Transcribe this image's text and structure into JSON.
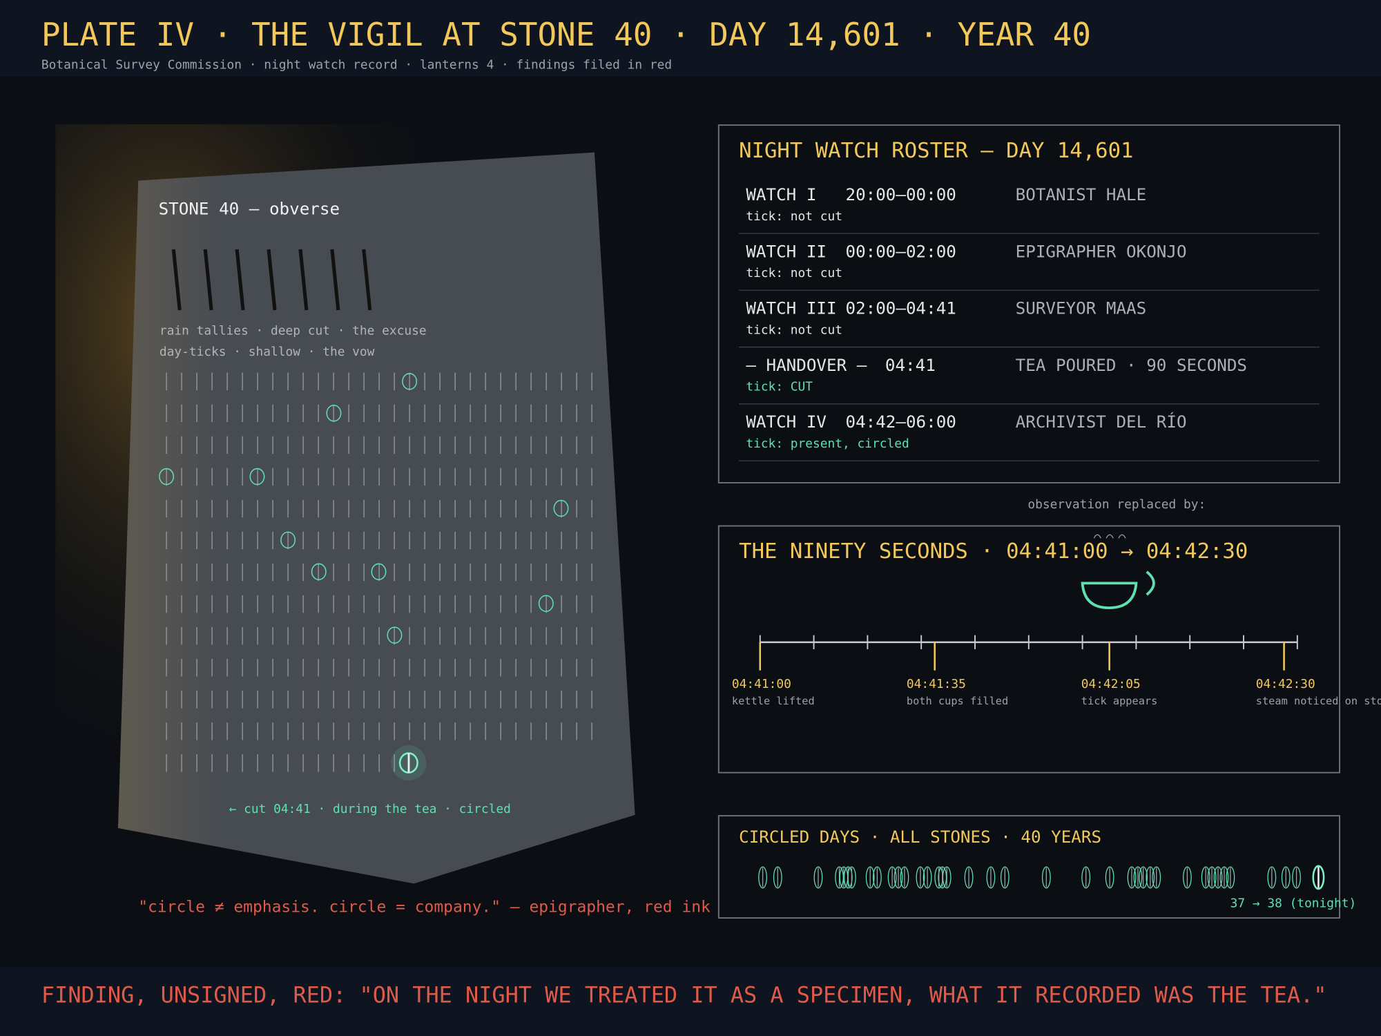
{
  "header": {
    "title": "PLATE IV · THE VIGIL AT STONE 40 · DAY 14,601 · YEAR 40",
    "subtitle": "Botanical Survey Commission · night watch record · lanterns 4 · findings filed in red"
  },
  "stone": {
    "label": "STONE 40 — obverse",
    "legend": [
      "rain tallies · deep cut · the excuse",
      "day-ticks · shallow · the vow"
    ],
    "caption": "← cut 04:41 · during the tea · circled",
    "quote": "\"circle ≠ emphasis. circle = company.\" — epigrapher, red ink"
  },
  "roster": {
    "title": "NIGHT WATCH ROSTER — DAY 14,601",
    "rows": [
      {
        "watch": "WATCH I",
        "time": "20:00–00:00",
        "name": "BOTANIST HALE",
        "status": "tick: not cut"
      },
      {
        "watch": "WATCH II",
        "time": "00:00–02:00",
        "name": "EPIGRAPHER OKONJO",
        "status": "tick: not cut"
      },
      {
        "watch": "WATCH III",
        "time": "02:00–04:41",
        "name": "SURVEYOR MAAS",
        "status": "tick: not cut"
      },
      {
        "watch": "— HANDOVER —",
        "time": "04:41",
        "name": "TEA POURED · 90 SECONDS",
        "status": "tick: CUT"
      },
      {
        "watch": "WATCH IV",
        "time": "04:42–06:00",
        "name": "ARCHIVIST DEL RÍO",
        "status": "tick: present, circled"
      }
    ]
  },
  "transition": "observation replaced by:",
  "ninety": {
    "title": "THE NINETY SECONDS · 04:41:00 → 04:42:30",
    "events": [
      {
        "time": "04:41:00",
        "label": "kettle lifted"
      },
      {
        "time": "04:41:35",
        "label": "both cups filled"
      },
      {
        "time": "04:42:05",
        "label": "tick appears"
      },
      {
        "time": "04:42:30",
        "label": "steam noticed on stone"
      }
    ]
  },
  "circled": {
    "title": "CIRCLED DAYS · ALL STONES · 40 YEARS",
    "count": "37 → 38 (tonight)"
  },
  "finding": "FINDING, UNSIGNED, RED: \"ON THE NIGHT WE TREATED IT AS A SPECIMEN, WHAT IT RECORDED WAS THE TEA.\""
}
